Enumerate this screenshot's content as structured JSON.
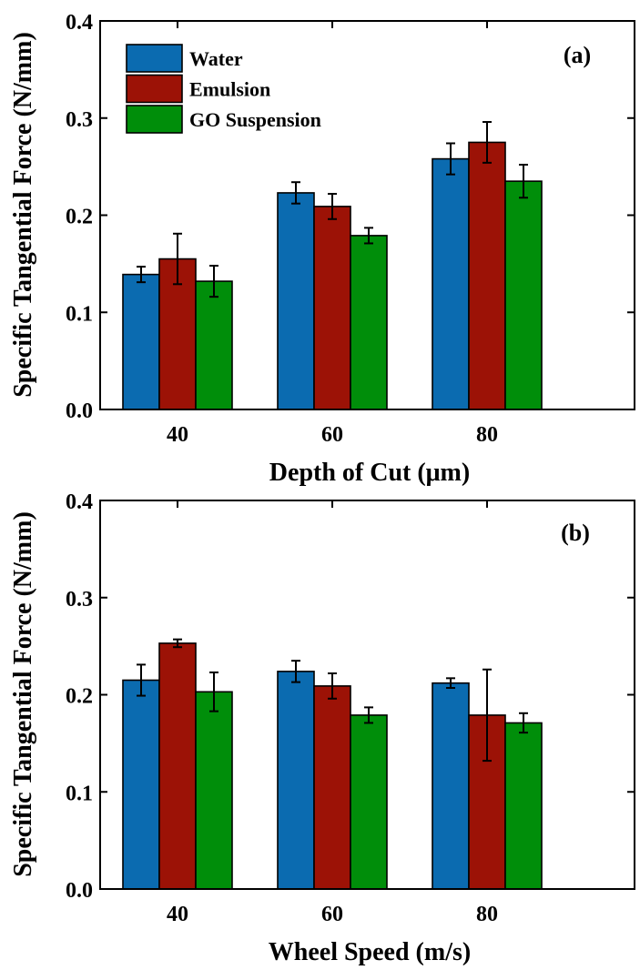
{
  "chart_data": [
    {
      "type": "bar",
      "panel_label": "(a)",
      "title": "",
      "xlabel": "Depth of Cut (μm)",
      "ylabel": "Specific Tangential Force (N/mm)",
      "categories": [
        "40",
        "60",
        "80"
      ],
      "ylim": [
        0.0,
        0.4
      ],
      "yticks": [
        "0.0",
        "0.1",
        "0.2",
        "0.3",
        "0.4"
      ],
      "grid": false,
      "legend_position": "top-left",
      "series": [
        {
          "name": "Water",
          "color": "#0b6bb0",
          "values": [
            0.139,
            0.223,
            0.258
          ],
          "errors": [
            0.008,
            0.011,
            0.016
          ]
        },
        {
          "name": "Emulsion",
          "color": "#9c1206",
          "values": [
            0.155,
            0.209,
            0.275
          ],
          "errors": [
            0.026,
            0.013,
            0.021
          ]
        },
        {
          "name": "GO Suspension",
          "color": "#008e0a",
          "values": [
            0.132,
            0.179,
            0.235
          ],
          "errors": [
            0.016,
            0.008,
            0.017
          ]
        }
      ]
    },
    {
      "type": "bar",
      "panel_label": "(b)",
      "title": "",
      "xlabel": "Wheel Speed (m/s)",
      "ylabel": "Specific Tangential Force (N/mm)",
      "categories": [
        "40",
        "60",
        "80"
      ],
      "ylim": [
        0.0,
        0.4
      ],
      "yticks": [
        "0.0",
        "0.1",
        "0.2",
        "0.3",
        "0.4"
      ],
      "grid": false,
      "legend_position": "none",
      "series": [
        {
          "name": "Water",
          "color": "#0b6bb0",
          "values": [
            0.215,
            0.224,
            0.212
          ],
          "errors": [
            0.016,
            0.011,
            0.005
          ]
        },
        {
          "name": "Emulsion",
          "color": "#9c1206",
          "values": [
            0.253,
            0.209,
            0.179
          ],
          "errors": [
            0.004,
            0.013,
            0.047
          ]
        },
        {
          "name": "GO Suspension",
          "color": "#008e0a",
          "values": [
            0.203,
            0.179,
            0.171
          ],
          "errors": [
            0.02,
            0.008,
            0.01
          ]
        }
      ]
    }
  ]
}
